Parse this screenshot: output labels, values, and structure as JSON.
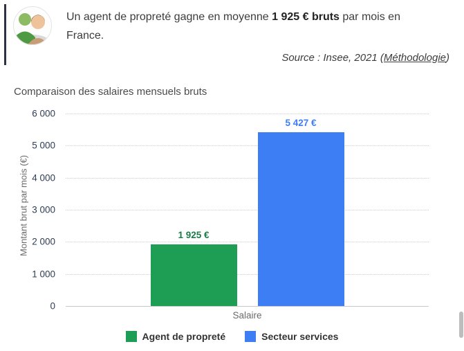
{
  "info": {
    "text_before": "Un agent de propreté gagne en moyenne ",
    "text_bold": "1 925 € bruts",
    "text_after": " par mois en France."
  },
  "source": {
    "prefix": "Source : Insee, 2021 (",
    "link": "Méthodologie",
    "suffix": ")"
  },
  "chart_data": {
    "type": "bar",
    "title": "Comparaison des salaires mensuels bruts",
    "categories": [
      "Salaire"
    ],
    "series": [
      {
        "name": "Agent de propreté",
        "values": [
          1925
        ],
        "color": "#1e9e54",
        "label": "1 925 €",
        "label_color": "#1b7a46"
      },
      {
        "name": "Secteur services",
        "values": [
          5427
        ],
        "color": "#3d7ef5",
        "label": "5 427 €",
        "label_color": "#3d7ef5"
      }
    ],
    "xlabel": "Salaire",
    "ylabel": "Montant brut par mois (€)",
    "ylim": [
      0,
      6000
    ],
    "yticks": [
      0,
      1000,
      2000,
      3000,
      4000,
      5000,
      6000
    ],
    "ytick_labels": [
      "0",
      "1 000",
      "2 000",
      "3 000",
      "4 000",
      "5 000",
      "6 000"
    ],
    "grid": "dotted horizontal",
    "legend_position": "bottom"
  }
}
